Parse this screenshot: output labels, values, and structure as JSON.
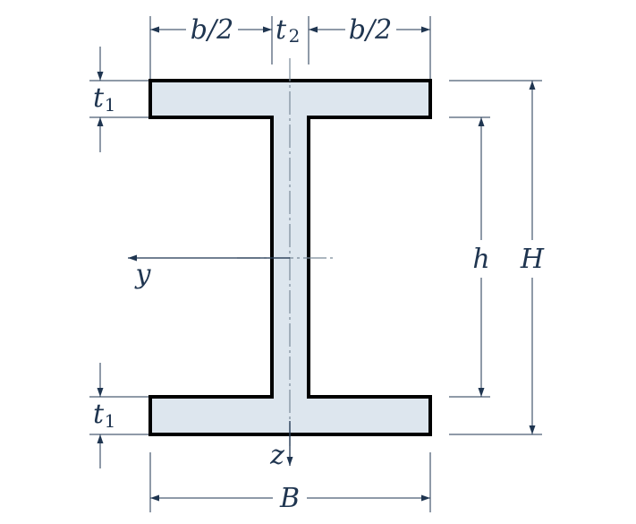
{
  "diagram": {
    "labels": {
      "half_width_left": "b/2",
      "web_thickness": "t",
      "web_thickness_sub": "2",
      "half_width_right": "b/2",
      "flange_thickness_top": "t",
      "flange_thickness_top_sub": "1",
      "flange_thickness_bottom": "t",
      "flange_thickness_bottom_sub": "1",
      "inner_height": "h",
      "total_height": "H",
      "total_width": "B",
      "axis_y": "y",
      "axis_z": "z"
    },
    "colors": {
      "section_fill": "#dde6ee",
      "outline": "#000000",
      "dimension": "#1f3550",
      "centerline": "#7a8a99"
    }
  }
}
